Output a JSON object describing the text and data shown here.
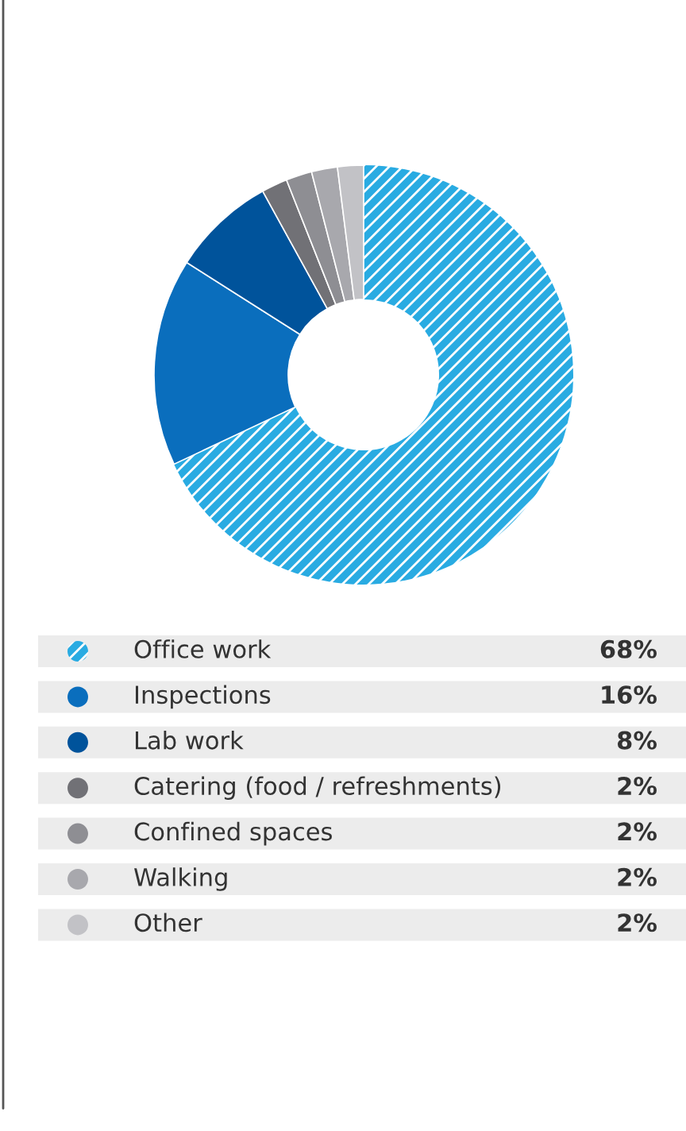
{
  "chart_data": {
    "type": "donut",
    "categories": [
      "Office work",
      "Inspections",
      "Lab work",
      "Catering (food / refreshments)",
      "Confined spaces",
      "Walking",
      "Other"
    ],
    "values": [
      68,
      16,
      8,
      2,
      2,
      2,
      2
    ],
    "colors": [
      "#29abe2",
      "#0a6ebd",
      "#00539b",
      "#717176",
      "#8e8e93",
      "#a8a8ad",
      "#c2c2c6"
    ],
    "value_labels": [
      "68%",
      "16%",
      "8%",
      "2%",
      "2%",
      "2%",
      "2%"
    ],
    "legend": "bottom"
  }
}
